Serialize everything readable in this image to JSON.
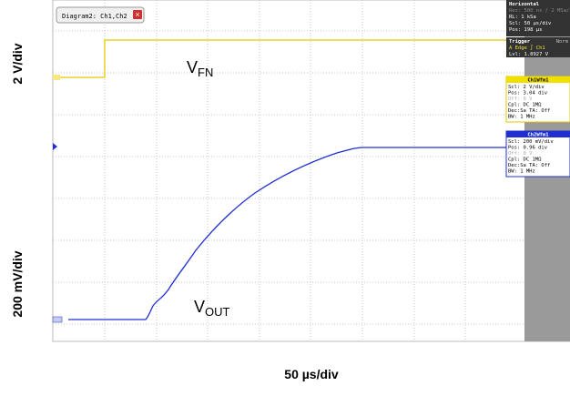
{
  "tab": {
    "title": "Diagram2: Ch1,Ch2"
  },
  "axes": {
    "ch1_scale": "2 V/div",
    "ch2_scale": "200 mV/div",
    "time_scale": "50 µs/div"
  },
  "labels": {
    "vfn": {
      "main": "V",
      "sub": "FN"
    },
    "vout": {
      "main": "V",
      "sub": "OUT"
    }
  },
  "panel": {
    "horizontal": {
      "title": "Horizontal",
      "lines": [
        "Res: 500 ns / 2 MSa/s",
        "RL: 1 kSa",
        "Scl: 50 µs/div",
        "Pos: 198 µs"
      ]
    },
    "trigger": {
      "title": "Trigger",
      "mode": "Norm",
      "lines": [
        "A   Edge  ∫ Ch1",
        "Lvl: 1.8927 V"
      ]
    },
    "ch1": {
      "title": "Ch1Wfm1",
      "lines": [
        "Scl: 2 V/div",
        "Pos: 3.04 div",
        "Off: 0 V",
        "Cpl: DC 1MΩ",
        "Dec:Sa    TA: Off",
        "BW: 1 MHz"
      ]
    },
    "ch2": {
      "title": "Ch2Wfm1",
      "lines": [
        "Scl: 200 mV/div",
        "Pos: 0.96 div",
        "Off: 0 V",
        "Cpl: DC 1MΩ",
        "Dec:Sa    TA: Off",
        "BW: 1 MHz"
      ]
    }
  }
}
